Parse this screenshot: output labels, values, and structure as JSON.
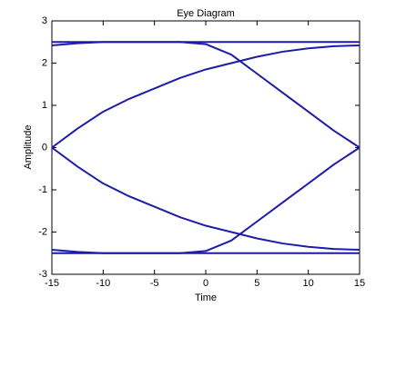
{
  "chart_data": {
    "type": "line",
    "title": "Eye Diagram",
    "xlabel": "Time",
    "ylabel": "Amplitude",
    "x": [
      -15,
      -12.5,
      -10,
      -7.5,
      -5,
      -2.5,
      0,
      2.5,
      5,
      7.5,
      10,
      12.5,
      15
    ],
    "series": [
      {
        "color": "#1c1ca8",
        "values": [
          2.5,
          2.5,
          2.5,
          2.5,
          2.5,
          2.5,
          2.5,
          2.5,
          2.5,
          2.5,
          2.5,
          2.5,
          2.5
        ]
      },
      {
        "color": "#1c1ca8",
        "values": [
          -2.5,
          -2.5,
          -2.5,
          -2.5,
          -2.5,
          -2.5,
          -2.5,
          -2.5,
          -2.5,
          -2.5,
          -2.5,
          -2.5,
          -2.5
        ]
      },
      {
        "color": "#1c1ca8",
        "values": [
          0,
          0.45,
          0.85,
          1.15,
          1.4,
          1.65,
          1.85,
          2.0,
          2.15,
          2.27,
          2.35,
          2.4,
          2.42
        ]
      },
      {
        "color": "#1c1ca8",
        "values": [
          0,
          -0.45,
          -0.85,
          -1.15,
          -1.4,
          -1.65,
          -1.85,
          -2.0,
          -2.15,
          -2.27,
          -2.35,
          -2.4,
          -2.42
        ]
      },
      {
        "color": "#1c1ca8",
        "values": [
          2.42,
          2.47,
          2.5,
          2.5,
          2.5,
          2.5,
          2.45,
          2.2,
          1.75,
          1.3,
          0.85,
          0.4,
          0
        ]
      },
      {
        "color": "#1c1ca8",
        "values": [
          -2.42,
          -2.47,
          -2.5,
          -2.5,
          -2.5,
          -2.5,
          -2.45,
          -2.2,
          -1.75,
          -1.3,
          -0.85,
          -0.4,
          0
        ]
      }
    ],
    "xlim": [
      -15,
      15
    ],
    "xticks": [
      -15,
      -10,
      -5,
      0,
      5,
      10,
      15
    ],
    "ylim": [
      -3,
      3
    ],
    "yticks": [
      -3,
      -2,
      -1,
      0,
      1,
      2,
      3
    ]
  }
}
